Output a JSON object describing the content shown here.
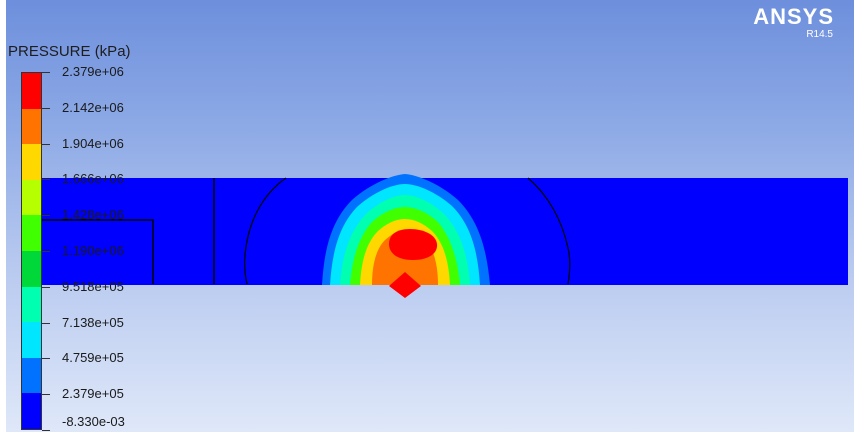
{
  "brand": {
    "name": "ANSYS",
    "version": "R14.5"
  },
  "legend": {
    "title": "PRESSURE (kPa)",
    "labels": [
      "2.379e+06",
      "2.142e+06",
      "1.904e+06",
      "1.666e+06",
      "1.428e+06",
      "1.190e+06",
      "9.518e+05",
      "7.138e+05",
      "4.759e+05",
      "2.379e+05",
      "-8.330e-03"
    ],
    "band_colors": [
      "#ff0000",
      "#ff7300",
      "#ffd800",
      "#b5ff00",
      "#40ff00",
      "#00d83a",
      "#00ffb0",
      "#00e6ff",
      "#0072ff",
      "#0000ff"
    ]
  },
  "field_colors": {
    "background_band": "#0000ff",
    "outer": "#0072ff",
    "ring_cyan": "#00e6ff",
    "ring_teal": "#00ffb0",
    "ring_green": "#40ff00",
    "ring_yellow": "#ffd800",
    "ring_orange": "#ff7300",
    "core": "#ff0000"
  }
}
